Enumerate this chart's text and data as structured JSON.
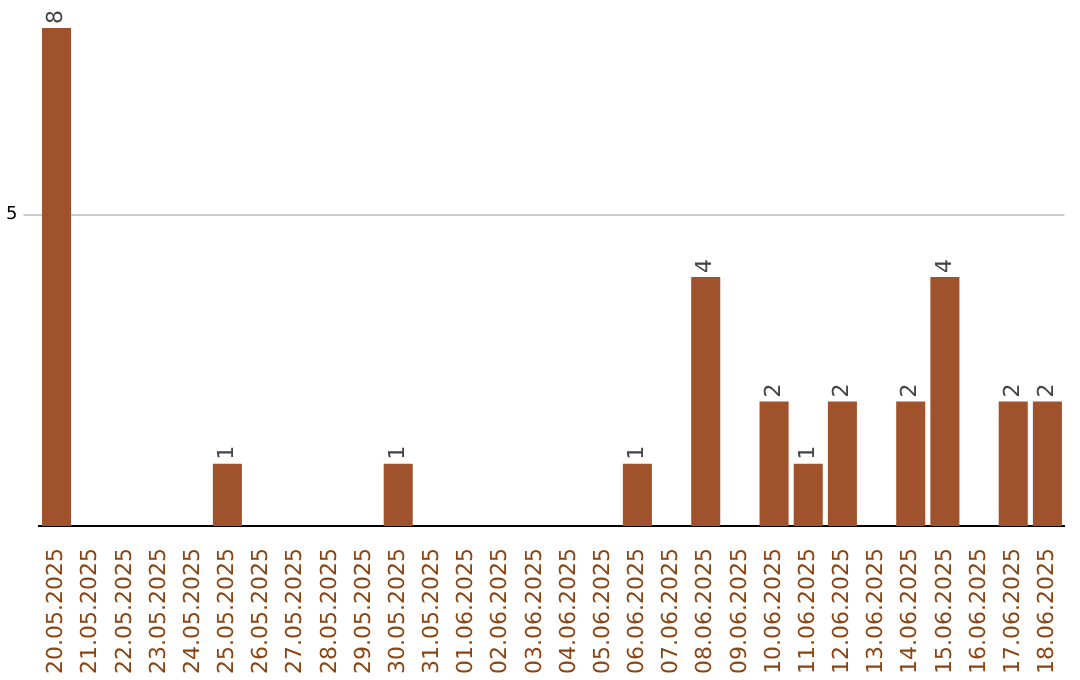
{
  "chart_data": {
    "type": "bar",
    "categories": [
      "20.05.2025",
      "21.05.2025",
      "22.05.2025",
      "23.05.2025",
      "24.05.2025",
      "25.05.2025",
      "26.05.2025",
      "27.05.2025",
      "28.05.2025",
      "29.05.2025",
      "30.05.2025",
      "31.05.2025",
      "01.06.2025",
      "02.06.2025",
      "03.06.2025",
      "04.06.2025",
      "05.06.2025",
      "06.06.2025",
      "07.06.2025",
      "08.06.2025",
      "09.06.2025",
      "10.06.2025",
      "11.06.2025",
      "12.06.2025",
      "13.06.2025",
      "14.06.2025",
      "15.06.2025",
      "16.06.2025",
      "17.06.2025",
      "18.06.2025"
    ],
    "values": [
      8,
      0,
      0,
      0,
      0,
      1,
      0,
      0,
      0,
      0,
      1,
      0,
      0,
      0,
      0,
      0,
      0,
      1,
      0,
      4,
      0,
      2,
      1,
      2,
      0,
      2,
      4,
      0,
      2,
      2
    ],
    "value_labels": [
      "8",
      null,
      null,
      null,
      null,
      "1",
      null,
      null,
      null,
      null,
      "1",
      null,
      null,
      null,
      null,
      null,
      null,
      "1",
      null,
      "4",
      null,
      "2",
      "1",
      "2",
      null,
      "2",
      "4",
      null,
      "2",
      "2"
    ],
    "color": "#a0522d",
    "ylim": [
      0,
      8
    ],
    "yticks": [
      5
    ],
    "grid": "y",
    "legend": false
  }
}
